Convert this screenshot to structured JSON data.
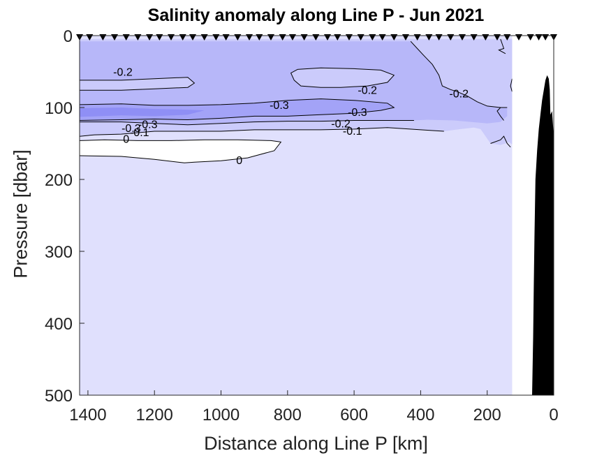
{
  "chart_data": {
    "type": "contour",
    "title": "Salinity anomaly along Line P - Jun 2021",
    "xlabel": "Distance along Line P [km]",
    "ylabel": "Pressure [dbar]",
    "xlim": [
      1425,
      0
    ],
    "ylim": [
      0,
      500
    ],
    "x_reversed": true,
    "y_reversed": true,
    "xticks": [
      1400,
      1200,
      1000,
      800,
      600,
      400,
      200,
      0
    ],
    "yticks": [
      0,
      100,
      200,
      300,
      400,
      500
    ],
    "grid": false,
    "levels": [
      {
        "value": -0.4,
        "color": "#8f8ff5"
      },
      {
        "value": -0.3,
        "color": "#a3a3f7"
      },
      {
        "value": -0.2,
        "color": "#b7b7f9"
      },
      {
        "value": -0.1,
        "color": "#cbcbfb"
      },
      {
        "value": 0,
        "color": "#e0e0fd"
      }
    ],
    "contour_labels": [
      {
        "text": "-0.2",
        "x": 1295,
        "y": 50
      },
      {
        "text": "-0.2",
        "x": 560,
        "y": 75
      },
      {
        "text": "-0.2",
        "x": 285,
        "y": 80
      },
      {
        "text": "-0.3",
        "x": 825,
        "y": 96
      },
      {
        "text": "-0.3",
        "x": 590,
        "y": 106
      },
      {
        "text": "-0.3",
        "x": 1220,
        "y": 123
      },
      {
        "text": "-0.2",
        "x": 640,
        "y": 122
      },
      {
        "text": "-0.3",
        "x": 1270,
        "y": 128
      },
      {
        "text": "-0.1",
        "x": 1245,
        "y": 134
      },
      {
        "text": "-0.1",
        "x": 605,
        "y": 132
      },
      {
        "text": "0",
        "x": 1285,
        "y": 143
      },
      {
        "text": "0",
        "x": 945,
        "y": 173
      }
    ],
    "station_x": [
      1425,
      1395,
      1355,
      1320,
      1285,
      1250,
      1215,
      1185,
      1150,
      1115,
      1085,
      1050,
      1015,
      985,
      950,
      915,
      885,
      850,
      815,
      785,
      750,
      715,
      680,
      650,
      615,
      580,
      545,
      515,
      480,
      445,
      410,
      375,
      345,
      310,
      275,
      240,
      205,
      170,
      140,
      105,
      70,
      45,
      25,
      0
    ],
    "no_data_color": "#ffffff",
    "bathymetry_color": "#000000"
  }
}
